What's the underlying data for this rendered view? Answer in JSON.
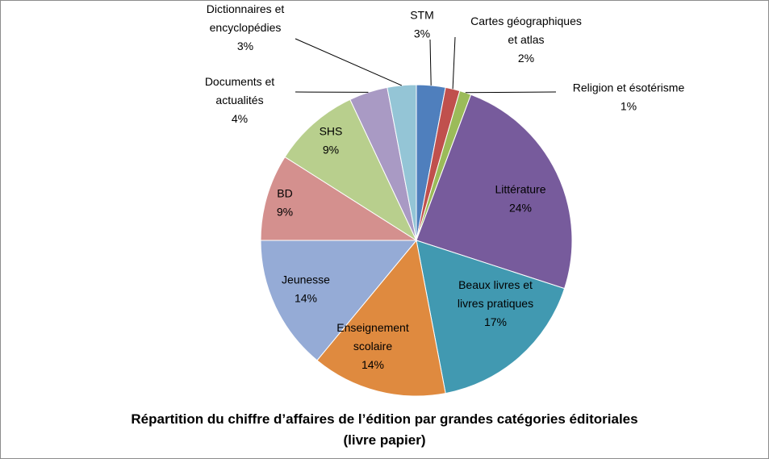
{
  "chart_data": {
    "type": "pie",
    "title": "Répartition du chiffre d’affaires de l’édition par grandes catégories éditoriales",
    "subtitle": "(livre papier)",
    "slices": [
      {
        "label_lines": [
          "STM"
        ],
        "percent_label": "3%",
        "value": 3,
        "color": "#4f7fbd"
      },
      {
        "label_lines": [
          "Cartes géographiques",
          "et atlas"
        ],
        "percent_label": "2%",
        "value": 1.5,
        "color": "#c0504d"
      },
      {
        "label_lines": [
          "Religion et ésotérisme"
        ],
        "percent_label": "1%",
        "value": 1.2,
        "color": "#9bbb59"
      },
      {
        "label_lines": [
          "Littérature"
        ],
        "percent_label": "24%",
        "value": 24.3,
        "color": "#775b9c"
      },
      {
        "label_lines": [
          "Beaux livres et",
          "livres pratiques"
        ],
        "percent_label": "17%",
        "value": 17,
        "color": "#4199b1"
      },
      {
        "label_lines": [
          "Enseignement",
          "scolaire"
        ],
        "percent_label": "14%",
        "value": 14,
        "color": "#df8a3f"
      },
      {
        "label_lines": [
          "Jeunesse"
        ],
        "percent_label": "14%",
        "value": 14,
        "color": "#95abd6"
      },
      {
        "label_lines": [
          "BD"
        ],
        "percent_label": "9%",
        "value": 9,
        "color": "#d4908e"
      },
      {
        "label_lines": [
          "SHS"
        ],
        "percent_label": "9%",
        "value": 9,
        "color": "#b8cf8d"
      },
      {
        "label_lines": [
          "Documents et",
          "actualités"
        ],
        "percent_label": "4%",
        "value": 4,
        "color": "#a99ac4"
      },
      {
        "label_lines": [
          "Dictionnaires  et",
          "encyclopédies"
        ],
        "percent_label": "3%",
        "value": 3,
        "color": "#94c5d6"
      }
    ],
    "legend": "none",
    "data_labels": "category name and percentage"
  }
}
